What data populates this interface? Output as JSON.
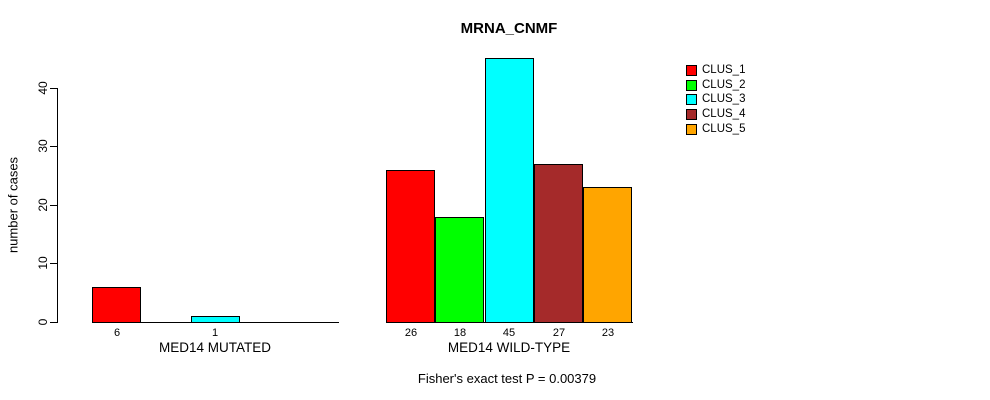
{
  "title": "MRNA_CNMF",
  "ylabel": "number of cases",
  "footer": "Fisher's exact test P = 0.00379",
  "legend": [
    {
      "label": "CLUS_1",
      "color": "#FF0000"
    },
    {
      "label": "CLUS_2",
      "color": "#00FF00"
    },
    {
      "label": "CLUS_3",
      "color": "#00FFFF"
    },
    {
      "label": "CLUS_4",
      "color": "#A52A2A"
    },
    {
      "label": "CLUS_5",
      "color": "#FFA500"
    }
  ],
  "chart_data": {
    "type": "bar",
    "title": "MRNA_CNMF",
    "ylabel": "number of cases",
    "ylim": [
      0,
      45
    ],
    "yticks": [
      0,
      10,
      20,
      30,
      40
    ],
    "grid": false,
    "legend_position": "right",
    "series_labels": [
      "CLUS_1",
      "CLUS_2",
      "CLUS_3",
      "CLUS_4",
      "CLUS_5"
    ],
    "colors": [
      "#FF0000",
      "#00FF00",
      "#00FFFF",
      "#A52A2A",
      "#FFA500"
    ],
    "groups": [
      {
        "label": "MED14 MUTATED",
        "values": [
          6,
          0,
          1,
          0,
          0
        ],
        "value_labels": [
          "6",
          "",
          "1",
          "",
          ""
        ]
      },
      {
        "label": "MED14 WILD-TYPE",
        "values": [
          26,
          18,
          45,
          27,
          23
        ],
        "value_labels": [
          "26",
          "18",
          "45",
          "27",
          "23"
        ]
      }
    ],
    "annotation": "Fisher's exact test P = 0.00379"
  }
}
